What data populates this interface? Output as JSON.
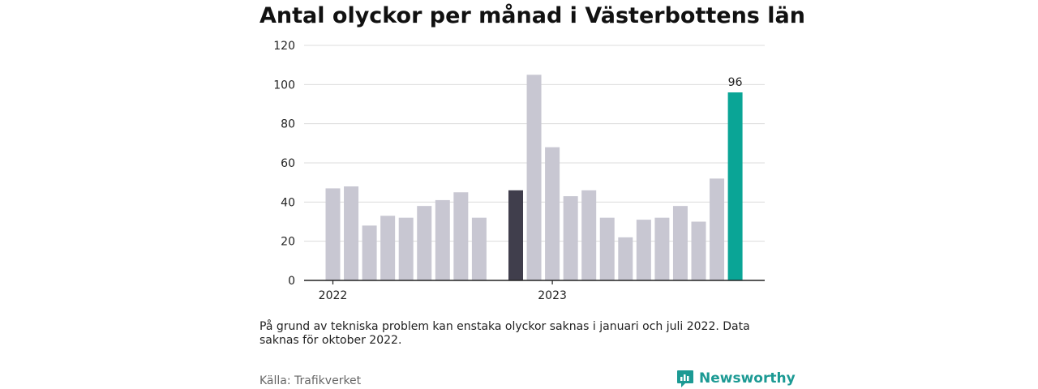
{
  "chart_data": {
    "type": "bar",
    "title": "Antal olyckor per månad i Västerbottens län",
    "xlabel": "",
    "ylabel": "",
    "ylim": [
      0,
      120
    ],
    "yticks": [
      0,
      20,
      40,
      60,
      80,
      100,
      120
    ],
    "grid": true,
    "x_tick_labels": [
      {
        "label": "2022",
        "at": "2022-01"
      },
      {
        "label": "2023",
        "at": "2023-01"
      }
    ],
    "categories": [
      "2022-01",
      "2022-02",
      "2022-03",
      "2022-04",
      "2022-05",
      "2022-06",
      "2022-07",
      "2022-08",
      "2022-09",
      "2022-10",
      "2022-11",
      "2022-12",
      "2023-01",
      "2023-02",
      "2023-03",
      "2023-04",
      "2023-05",
      "2023-06",
      "2023-07",
      "2023-08",
      "2023-09",
      "2023-10",
      "2023-11",
      "2023-12"
    ],
    "values": [
      47,
      48,
      28,
      33,
      32,
      38,
      41,
      45,
      32,
      null,
      46,
      105,
      68,
      43,
      46,
      32,
      22,
      31,
      32,
      38,
      30,
      52,
      96,
      null
    ],
    "highlight": [
      {
        "category": "2022-11",
        "color": "#403e4c"
      },
      {
        "category": "2023-11",
        "color": "#0aa596",
        "label": "96"
      }
    ],
    "bar_color": "#c8c7d2"
  },
  "note": "På grund av tekniska problem kan enstaka olyckor saknas i januari och juli 2022. Data saknas för oktober 2022.",
  "source": "Källa: Trafikverket",
  "brand": {
    "name": "Newsworthy",
    "color": "#1c9a94",
    "icon": "bar-chart-logo-icon"
  }
}
